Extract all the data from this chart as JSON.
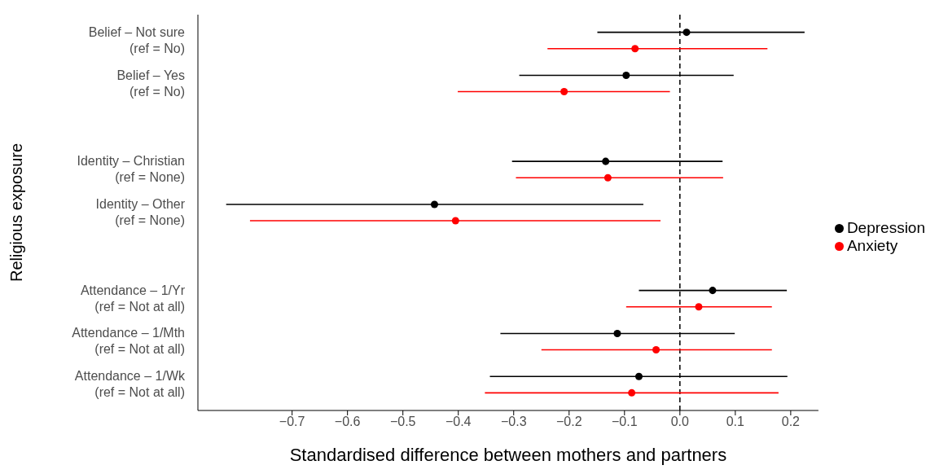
{
  "chart_data": {
    "type": "scatter",
    "orientation": "horizontal",
    "xlabel": "Standardised difference between mothers and partners",
    "ylabel": "Religious exposure",
    "categories": [
      "Belief – Not sure\n(ref = No)",
      "Belief – Yes\n(ref = No)",
      null,
      "Identity – Christian\n(ref = None)",
      "Identity – Other\n(ref = None)",
      null,
      "Attendance – 1/Yr\n(ref = Not at all)",
      "Attendance – 1/Mth\n(ref = Not at all)",
      "Attendance – 1/Wk\n(ref = Not at all)"
    ],
    "series": [
      {
        "name": "Depression",
        "color": "#000000",
        "values": [
          0.012,
          -0.097,
          null,
          -0.134,
          -0.443,
          null,
          0.059,
          -0.113,
          -0.074
        ],
        "errors": [
          [
            -0.149,
            0.225
          ],
          [
            -0.29,
            0.097
          ],
          null,
          [
            -0.303,
            0.077
          ],
          [
            -0.819,
            -0.066
          ],
          null,
          [
            -0.074,
            0.193
          ],
          [
            -0.324,
            0.099
          ],
          [
            -0.343,
            0.194
          ]
        ]
      },
      {
        "name": "Anxiety",
        "color": "#ff0000",
        "values": [
          -0.081,
          -0.209,
          null,
          -0.13,
          -0.405,
          null,
          0.034,
          -0.043,
          -0.087
        ],
        "errors": [
          [
            -0.239,
            0.158
          ],
          [
            -0.401,
            -0.018
          ],
          null,
          [
            -0.296,
            0.078
          ],
          [
            -0.776,
            -0.035
          ],
          null,
          [
            -0.097,
            0.166
          ],
          [
            -0.25,
            0.166
          ],
          [
            -0.352,
            0.178
          ]
        ]
      }
    ],
    "xlim": [
      -0.87,
      0.25
    ],
    "xticks": [
      {
        "value": -0.7,
        "label": "−0.7"
      },
      {
        "value": -0.6,
        "label": "−0.6"
      },
      {
        "value": -0.5,
        "label": "−0.5"
      },
      {
        "value": -0.4,
        "label": "−0.4"
      },
      {
        "value": -0.3,
        "label": "−0.3"
      },
      {
        "value": -0.2,
        "label": "−0.2"
      },
      {
        "value": -0.1,
        "label": "−0.1"
      },
      {
        "value": 0,
        "label": "0.0"
      },
      {
        "value": 0.1,
        "label": "0.1"
      },
      {
        "value": 0.2,
        "label": "0.2"
      }
    ],
    "ref_lines": [
      {
        "axis": "x",
        "value": 0,
        "line_style": "dashed",
        "color": "#000000"
      }
    ],
    "grid": false,
    "legend": "right",
    "marker": "circle"
  }
}
